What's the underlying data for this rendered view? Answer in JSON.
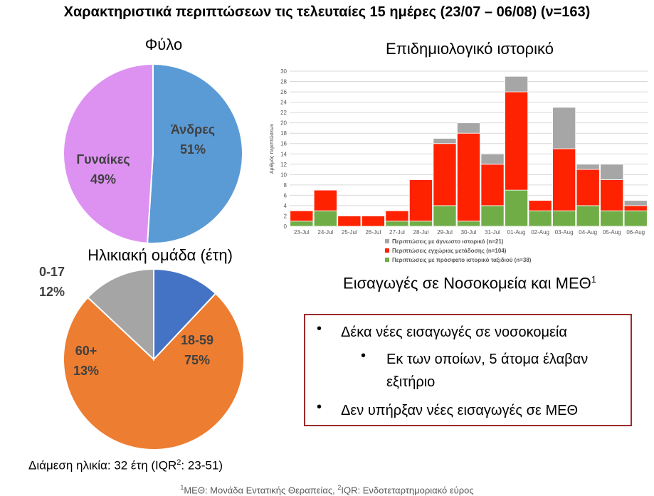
{
  "title": "Χαρακτηριστικά περιπτώσεων τις τελευταίες 15 ημέρες (23/07 – 06/08) (ν=163)",
  "chart_data": [
    {
      "type": "pie",
      "title": "Φύλο",
      "slices": [
        {
          "label": "Άνδρες",
          "value": 51,
          "display": "51%",
          "color": "#5b9bd5"
        },
        {
          "label": "Γυναίκες",
          "value": 49,
          "display": "49%",
          "color": "#dd92f2"
        }
      ]
    },
    {
      "type": "bar",
      "stacked": true,
      "title": "Επιδημιολογικό ιστορικό",
      "ylabel": "Αριθμός περιπτώσεων",
      "ylim": [
        0,
        30
      ],
      "yticks": [
        0,
        2,
        4,
        6,
        8,
        10,
        12,
        14,
        16,
        18,
        20,
        22,
        24,
        26,
        28,
        30
      ],
      "grid": true,
      "legend_position": "bottom",
      "categories": [
        "23-Jul",
        "24-Jul",
        "25-Jul",
        "26-Jul",
        "27-Jul",
        "28-Jul",
        "29-Jul",
        "30-Jul",
        "31-Jul",
        "01-Aug",
        "02-Aug",
        "03-Aug",
        "04-Aug",
        "05-Aug",
        "06-Aug"
      ],
      "series": [
        {
          "name": "Περιπτώσεις με πρόσφατο ιστορικό ταξιδιού (n=38)",
          "color": "#70ad47",
          "values": [
            1,
            3,
            0,
            0,
            1,
            1,
            4,
            1,
            4,
            7,
            3,
            3,
            4,
            3,
            3
          ]
        },
        {
          "name": "Περιπτώσεις εγχώριας μετάδοσης (n=104)",
          "color": "#ff2200",
          "values": [
            2,
            4,
            2,
            2,
            2,
            8,
            12,
            17,
            8,
            19,
            2,
            12,
            7,
            6,
            1
          ]
        },
        {
          "name": "Περιπτώσεις με άγνωστο ιστορικό (n=21)",
          "color": "#a6a6a6",
          "values": [
            0,
            0,
            0,
            0,
            0,
            0,
            1,
            2,
            2,
            3,
            0,
            8,
            1,
            3,
            1
          ]
        }
      ]
    },
    {
      "type": "pie",
      "title": "Ηλικιακή ομάδα (έτη)",
      "slices": [
        {
          "label": "18-59",
          "value": 75,
          "display": "75%",
          "color": "#ed7d31"
        },
        {
          "label": "60+",
          "value": 13,
          "display": "13%",
          "color": "#a5a5a5"
        },
        {
          "label": "0-17",
          "value": 12,
          "display": "12%",
          "color": "#4472c4"
        }
      ]
    }
  ],
  "admissions": {
    "title": "Εισαγωγές σε Νοσοκομεία και ΜΕΘ",
    "title_sup": "1",
    "bullet_1": "Δέκα νέες εισαγωγές σε νοσοκομεία",
    "sub_bullet_line1": "Εκ των οποίων, 5 άτομα έλαβαν",
    "sub_bullet_line2": "εξιτήριο",
    "bullet_2": "Δεν υπήρξαν νέες εισαγωγές σε ΜΕΘ"
  },
  "median_age": {
    "text": "Διάμεση ηλικία: 32 έτη (IQR",
    "sup": "2",
    "suffix": ": 23-51)"
  },
  "footnote": {
    "sup1": "1",
    "part1": "ΜΕΘ: Μονάδα Εντατικής Θεραπείας, ",
    "sup2": "2",
    "part2": "IQR: Ενδοτεταρτημοριακό εύρος"
  }
}
